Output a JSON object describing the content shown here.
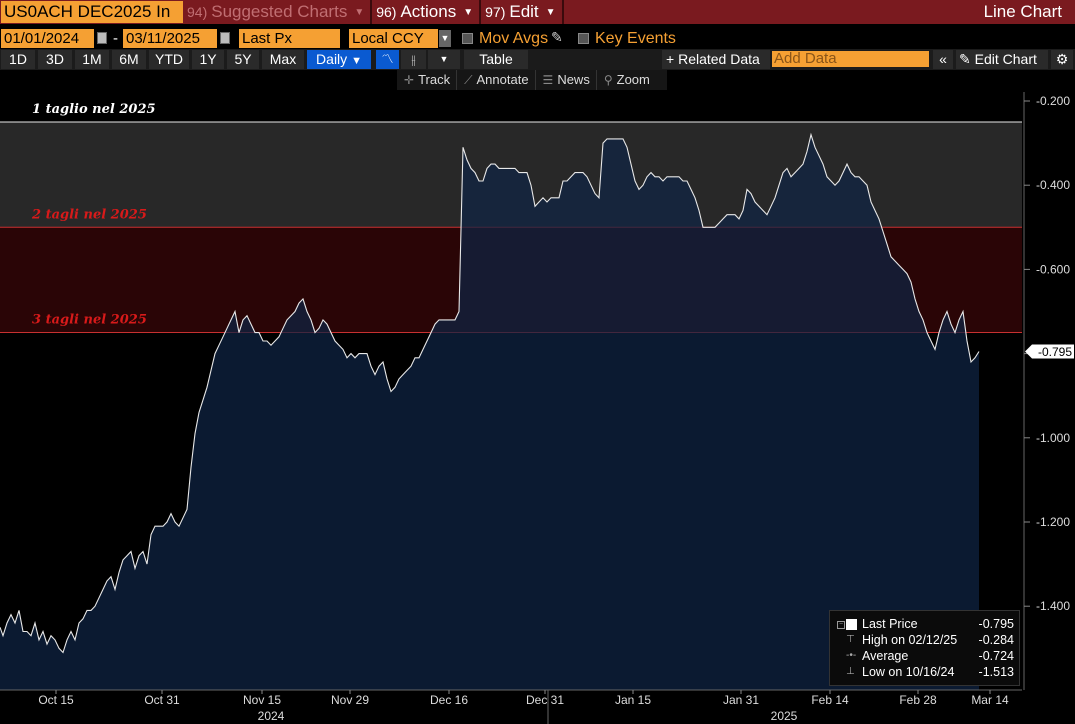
{
  "titlebar": {
    "ticker": "US0ACH DEC2025 In",
    "suggested_num": "94)",
    "suggested_label": "Suggested Charts",
    "actions_num": "96)",
    "actions_label": "Actions",
    "edit_num": "97)",
    "edit_label": "Edit",
    "chart_type": "Line Chart"
  },
  "controls": {
    "start_date": "01/01/2024",
    "date_separator": "-",
    "end_date": "03/11/2025",
    "field": "Last Px",
    "currency": "Local CCY",
    "mov_avgs": "Mov Avgs",
    "key_events": "Key Events"
  },
  "toolbar": {
    "ranges": [
      "1D",
      "3D",
      "1M",
      "6M",
      "YTD",
      "1Y",
      "5Y",
      "Max"
    ],
    "frequency": "Daily",
    "table": "Table",
    "related_data": "Related Data",
    "add_data_placeholder": "Add Data",
    "edit_chart": "Edit Chart"
  },
  "chart_tools": {
    "track": "Track",
    "annotate": "Annotate",
    "news": "News",
    "zoom": "Zoom"
  },
  "chart_data": {
    "type": "area",
    "title": "",
    "xlabel": "",
    "ylabel": "",
    "ylim": [
      -1.66,
      -0.15
    ],
    "yticks": [
      "-0.200",
      "-0.400",
      "-0.600",
      "-0.800",
      "-1.000",
      "-1.200",
      "-1.400"
    ],
    "ytick_values": [
      -0.2,
      -0.4,
      -0.6,
      -0.8,
      -1.0,
      -1.2,
      -1.4
    ],
    "xtick_labels": [
      "Oct 15",
      "Oct 31",
      "Nov 15",
      "Nov 29",
      "Dec 16",
      "Dec 31",
      "Jan 15",
      "Jan 31",
      "Feb 14",
      "Feb 28",
      "Mar 14"
    ],
    "year_labels": [
      "2024",
      "2025"
    ],
    "bands": [
      {
        "label": "1 taglio nel 2025",
        "from": -0.25,
        "to": -0.5,
        "color": "#282828",
        "label_color": "#ffffff",
        "line_color": "#e8e8e8"
      },
      {
        "label": "2 tagli nel 2025",
        "from": -0.5,
        "to": -0.75,
        "color": "#2a0506",
        "label_color": "#d81a1a",
        "line_color": "#c83030"
      },
      {
        "label": "3 tagli nel 2025",
        "from": -0.75,
        "to": null,
        "color": null,
        "label_color": "#d81a1a",
        "line_color": "#c83030"
      }
    ],
    "last_price_label": "-0.795",
    "series": [
      {
        "color": "#e8e8e8",
        "fill": "#0f2444",
        "points": [
          [
            0,
            -1.45
          ],
          [
            3,
            -1.47
          ],
          [
            7,
            -1.44
          ],
          [
            11,
            -1.42
          ],
          [
            15,
            -1.44
          ],
          [
            19,
            -1.41
          ],
          [
            23,
            -1.46
          ],
          [
            27,
            -1.46
          ],
          [
            31,
            -1.47
          ],
          [
            35,
            -1.44
          ],
          [
            39,
            -1.48
          ],
          [
            43,
            -1.46
          ],
          [
            47,
            -1.49
          ],
          [
            51,
            -1.47
          ],
          [
            55,
            -1.48
          ],
          [
            59,
            -1.5
          ],
          [
            63,
            -1.51
          ],
          [
            67,
            -1.48
          ],
          [
            71,
            -1.46
          ],
          [
            75,
            -1.48
          ],
          [
            79,
            -1.44
          ],
          [
            83,
            -1.43
          ],
          [
            87,
            -1.41
          ],
          [
            91,
            -1.41
          ],
          [
            95,
            -1.4
          ],
          [
            99,
            -1.38
          ],
          [
            103,
            -1.36
          ],
          [
            107,
            -1.34
          ],
          [
            111,
            -1.33
          ],
          [
            115,
            -1.36
          ],
          [
            119,
            -1.32
          ],
          [
            123,
            -1.29
          ],
          [
            127,
            -1.28
          ],
          [
            131,
            -1.27
          ],
          [
            135,
            -1.31
          ],
          [
            139,
            -1.28
          ],
          [
            143,
            -1.27
          ],
          [
            147,
            -1.3
          ],
          [
            151,
            -1.23
          ],
          [
            155,
            -1.21
          ],
          [
            159,
            -1.21
          ],
          [
            163,
            -1.21
          ],
          [
            167,
            -1.2
          ],
          [
            171,
            -1.18
          ],
          [
            175,
            -1.2
          ],
          [
            179,
            -1.21
          ],
          [
            183,
            -1.19
          ],
          [
            187,
            -1.17
          ],
          [
            191,
            -1.07
          ],
          [
            195,
            -0.99
          ],
          [
            199,
            -0.94
          ],
          [
            203,
            -0.91
          ],
          [
            207,
            -0.88
          ],
          [
            211,
            -0.84
          ],
          [
            215,
            -0.8
          ],
          [
            219,
            -0.78
          ],
          [
            223,
            -0.76
          ],
          [
            227,
            -0.74
          ],
          [
            231,
            -0.72
          ],
          [
            235,
            -0.7
          ],
          [
            239,
            -0.75
          ],
          [
            243,
            -0.72
          ],
          [
            247,
            -0.71
          ],
          [
            251,
            -0.73
          ],
          [
            255,
            -0.75
          ],
          [
            259,
            -0.75
          ],
          [
            263,
            -0.77
          ],
          [
            267,
            -0.77
          ],
          [
            271,
            -0.78
          ],
          [
            275,
            -0.77
          ],
          [
            279,
            -0.76
          ],
          [
            283,
            -0.74
          ],
          [
            287,
            -0.72
          ],
          [
            291,
            -0.71
          ],
          [
            295,
            -0.7
          ],
          [
            299,
            -0.68
          ],
          [
            303,
            -0.67
          ],
          [
            307,
            -0.7
          ],
          [
            311,
            -0.72
          ],
          [
            315,
            -0.75
          ],
          [
            319,
            -0.74
          ],
          [
            323,
            -0.72
          ],
          [
            327,
            -0.73
          ],
          [
            331,
            -0.75
          ],
          [
            335,
            -0.77
          ],
          [
            339,
            -0.78
          ],
          [
            343,
            -0.79
          ],
          [
            347,
            -0.81
          ],
          [
            351,
            -0.8
          ],
          [
            355,
            -0.81
          ],
          [
            359,
            -0.8
          ],
          [
            363,
            -0.8
          ],
          [
            367,
            -0.8
          ],
          [
            371,
            -0.83
          ],
          [
            375,
            -0.85
          ],
          [
            379,
            -0.83
          ],
          [
            383,
            -0.82
          ],
          [
            387,
            -0.86
          ],
          [
            391,
            -0.89
          ],
          [
            395,
            -0.88
          ],
          [
            399,
            -0.86
          ],
          [
            403,
            -0.85
          ],
          [
            407,
            -0.84
          ],
          [
            411,
            -0.83
          ],
          [
            415,
            -0.81
          ],
          [
            419,
            -0.81
          ],
          [
            423,
            -0.79
          ],
          [
            427,
            -0.77
          ],
          [
            431,
            -0.75
          ],
          [
            435,
            -0.73
          ],
          [
            439,
            -0.72
          ],
          [
            443,
            -0.72
          ],
          [
            447,
            -0.72
          ],
          [
            451,
            -0.72
          ],
          [
            455,
            -0.72
          ],
          [
            459,
            -0.7
          ],
          [
            463,
            -0.31
          ],
          [
            467,
            -0.34
          ],
          [
            471,
            -0.36
          ],
          [
            475,
            -0.37
          ],
          [
            479,
            -0.39
          ],
          [
            483,
            -0.39
          ],
          [
            487,
            -0.36
          ],
          [
            491,
            -0.35
          ],
          [
            495,
            -0.35
          ],
          [
            499,
            -0.36
          ],
          [
            503,
            -0.36
          ],
          [
            507,
            -0.36
          ],
          [
            511,
            -0.36
          ],
          [
            515,
            -0.36
          ],
          [
            519,
            -0.37
          ],
          [
            523,
            -0.37
          ],
          [
            527,
            -0.37
          ],
          [
            531,
            -0.4
          ],
          [
            535,
            -0.45
          ],
          [
            539,
            -0.44
          ],
          [
            543,
            -0.43
          ],
          [
            547,
            -0.44
          ],
          [
            551,
            -0.43
          ],
          [
            555,
            -0.43
          ],
          [
            559,
            -0.43
          ],
          [
            563,
            -0.39
          ],
          [
            567,
            -0.39
          ],
          [
            571,
            -0.38
          ],
          [
            575,
            -0.37
          ],
          [
            579,
            -0.37
          ],
          [
            583,
            -0.37
          ],
          [
            587,
            -0.38
          ],
          [
            591,
            -0.4
          ],
          [
            595,
            -0.42
          ],
          [
            599,
            -0.43
          ],
          [
            603,
            -0.3
          ],
          [
            607,
            -0.29
          ],
          [
            611,
            -0.29
          ],
          [
            615,
            -0.29
          ],
          [
            619,
            -0.29
          ],
          [
            623,
            -0.29
          ],
          [
            627,
            -0.31
          ],
          [
            631,
            -0.35
          ],
          [
            635,
            -0.39
          ],
          [
            639,
            -0.41
          ],
          [
            643,
            -0.4
          ],
          [
            647,
            -0.38
          ],
          [
            651,
            -0.37
          ],
          [
            655,
            -0.38
          ],
          [
            659,
            -0.38
          ],
          [
            663,
            -0.39
          ],
          [
            667,
            -0.38
          ],
          [
            671,
            -0.38
          ],
          [
            675,
            -0.38
          ],
          [
            679,
            -0.38
          ],
          [
            683,
            -0.39
          ],
          [
            687,
            -0.39
          ],
          [
            691,
            -0.41
          ],
          [
            695,
            -0.43
          ],
          [
            699,
            -0.46
          ],
          [
            703,
            -0.5
          ],
          [
            707,
            -0.5
          ],
          [
            711,
            -0.5
          ],
          [
            715,
            -0.5
          ],
          [
            719,
            -0.49
          ],
          [
            723,
            -0.48
          ],
          [
            727,
            -0.47
          ],
          [
            731,
            -0.47
          ],
          [
            735,
            -0.47
          ],
          [
            739,
            -0.48
          ],
          [
            743,
            -0.46
          ],
          [
            747,
            -0.41
          ],
          [
            751,
            -0.42
          ],
          [
            755,
            -0.44
          ],
          [
            759,
            -0.45
          ],
          [
            763,
            -0.46
          ],
          [
            767,
            -0.47
          ],
          [
            771,
            -0.45
          ],
          [
            775,
            -0.43
          ],
          [
            779,
            -0.4
          ],
          [
            783,
            -0.37
          ],
          [
            787,
            -0.36
          ],
          [
            791,
            -0.38
          ],
          [
            795,
            -0.37
          ],
          [
            799,
            -0.36
          ],
          [
            803,
            -0.35
          ],
          [
            807,
            -0.32
          ],
          [
            811,
            -0.28
          ],
          [
            815,
            -0.31
          ],
          [
            819,
            -0.33
          ],
          [
            823,
            -0.35
          ],
          [
            827,
            -0.38
          ],
          [
            831,
            -0.39
          ],
          [
            835,
            -0.4
          ],
          [
            839,
            -0.39
          ],
          [
            843,
            -0.37
          ],
          [
            847,
            -0.35
          ],
          [
            851,
            -0.37
          ],
          [
            855,
            -0.38
          ],
          [
            859,
            -0.38
          ],
          [
            863,
            -0.39
          ],
          [
            867,
            -0.4
          ],
          [
            871,
            -0.44
          ],
          [
            875,
            -0.46
          ],
          [
            879,
            -0.48
          ],
          [
            883,
            -0.51
          ],
          [
            887,
            -0.54
          ],
          [
            891,
            -0.57
          ],
          [
            895,
            -0.58
          ],
          [
            899,
            -0.59
          ],
          [
            903,
            -0.6
          ],
          [
            907,
            -0.61
          ],
          [
            911,
            -0.63
          ],
          [
            915,
            -0.67
          ],
          [
            919,
            -0.7
          ],
          [
            923,
            -0.72
          ],
          [
            927,
            -0.75
          ],
          [
            931,
            -0.77
          ],
          [
            935,
            -0.79
          ],
          [
            939,
            -0.75
          ],
          [
            943,
            -0.72
          ],
          [
            947,
            -0.7
          ],
          [
            951,
            -0.73
          ],
          [
            955,
            -0.75
          ],
          [
            959,
            -0.72
          ],
          [
            963,
            -0.7
          ],
          [
            967,
            -0.77
          ],
          [
            971,
            -0.82
          ],
          [
            975,
            -0.81
          ],
          [
            979,
            -0.795
          ]
        ]
      }
    ]
  },
  "legend": {
    "last_price_label": "Last Price",
    "last_price_value": "-0.795",
    "high_label": "High on 02/12/25",
    "high_value": "-0.284",
    "average_label": "Average",
    "average_value": "-0.724",
    "low_label": "Low on 10/16/24",
    "low_value": "-1.513"
  },
  "colors": {
    "accent": "#f5a033",
    "titlebar": "#7a1a1f",
    "active_button": "#0a5ad1",
    "fill": "#0f2444"
  }
}
